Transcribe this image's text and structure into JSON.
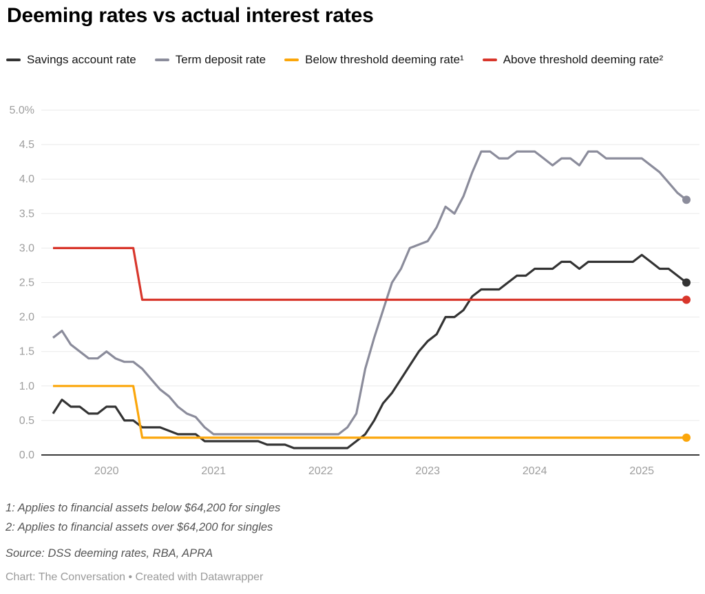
{
  "title": "Deeming rates vs actual interest rates",
  "legend": {
    "items": [
      {
        "label": "Savings account rate",
        "color": "#333333"
      },
      {
        "label": "Term deposit rate",
        "color": "#8b8c9b"
      },
      {
        "label": "Below threshold deeming rate¹",
        "color": "#fba60a"
      },
      {
        "label": "Above threshold deeming rate²",
        "color": "#d8362b"
      }
    ]
  },
  "chart_data": {
    "type": "line",
    "x_start": "2019-07",
    "x_end": "2025-06",
    "interval": "monthly",
    "ylim": [
      0,
      5
    ],
    "grid": "horizontal",
    "y_ticks": [
      {
        "v": 0,
        "label": "0.0"
      },
      {
        "v": 0.5,
        "label": "0.5"
      },
      {
        "v": 1,
        "label": "1.0"
      },
      {
        "v": 1.5,
        "label": "1.5"
      },
      {
        "v": 2,
        "label": "2.0"
      },
      {
        "v": 2.5,
        "label": "2.5"
      },
      {
        "v": 3,
        "label": "3.0"
      },
      {
        "v": 3.5,
        "label": "3.5"
      },
      {
        "v": 4,
        "label": "4.0"
      },
      {
        "v": 4.5,
        "label": "4.5"
      },
      {
        "v": 5,
        "label": "5.0%"
      }
    ],
    "x_ticks": [
      {
        "label": "2020",
        "month_index": 6
      },
      {
        "label": "2021",
        "month_index": 18
      },
      {
        "label": "2022",
        "month_index": 30
      },
      {
        "label": "2023",
        "month_index": 42
      },
      {
        "label": "2024",
        "month_index": 54
      },
      {
        "label": "2025",
        "month_index": 66
      }
    ],
    "series": [
      {
        "name": "Savings account rate",
        "color": "#333333",
        "end_dot": true,
        "values": [
          0.6,
          0.8,
          0.7,
          0.7,
          0.6,
          0.6,
          0.7,
          0.7,
          0.5,
          0.5,
          0.4,
          0.4,
          0.4,
          0.35,
          0.3,
          0.3,
          0.3,
          0.2,
          0.2,
          0.2,
          0.2,
          0.2,
          0.2,
          0.2,
          0.15,
          0.15,
          0.15,
          0.1,
          0.1,
          0.1,
          0.1,
          0.1,
          0.1,
          0.1,
          0.2,
          0.3,
          0.5,
          0.75,
          0.9,
          1.1,
          1.3,
          1.5,
          1.65,
          1.75,
          2.0,
          2.0,
          2.1,
          2.3,
          2.4,
          2.4,
          2.4,
          2.5,
          2.6,
          2.6,
          2.7,
          2.7,
          2.7,
          2.8,
          2.8,
          2.7,
          2.8,
          2.8,
          2.8,
          2.8,
          2.8,
          2.8,
          2.9,
          2.8,
          2.7,
          2.7,
          2.6,
          2.5
        ]
      },
      {
        "name": "Term deposit rate",
        "color": "#8b8c9b",
        "end_dot": true,
        "values": [
          1.7,
          1.8,
          1.6,
          1.5,
          1.4,
          1.4,
          1.5,
          1.4,
          1.35,
          1.35,
          1.25,
          1.1,
          0.95,
          0.85,
          0.7,
          0.6,
          0.55,
          0.4,
          0.3,
          0.3,
          0.3,
          0.3,
          0.3,
          0.3,
          0.3,
          0.3,
          0.3,
          0.3,
          0.3,
          0.3,
          0.3,
          0.3,
          0.3,
          0.4,
          0.6,
          1.25,
          1.7,
          2.1,
          2.5,
          2.7,
          3.0,
          3.05,
          3.1,
          3.3,
          3.6,
          3.5,
          3.75,
          4.1,
          4.4,
          4.4,
          4.3,
          4.3,
          4.4,
          4.4,
          4.4,
          4.3,
          4.2,
          4.3,
          4.3,
          4.2,
          4.4,
          4.4,
          4.3,
          4.3,
          4.3,
          4.3,
          4.3,
          4.2,
          4.1,
          3.95,
          3.8,
          3.7
        ]
      },
      {
        "name": "Below threshold deeming rate¹",
        "color": "#fba60a",
        "end_dot": true,
        "values": [
          1,
          1,
          1,
          1,
          1,
          1,
          1,
          1,
          1,
          1,
          0.25,
          0.25,
          0.25,
          0.25,
          0.25,
          0.25,
          0.25,
          0.25,
          0.25,
          0.25,
          0.25,
          0.25,
          0.25,
          0.25,
          0.25,
          0.25,
          0.25,
          0.25,
          0.25,
          0.25,
          0.25,
          0.25,
          0.25,
          0.25,
          0.25,
          0.25,
          0.25,
          0.25,
          0.25,
          0.25,
          0.25,
          0.25,
          0.25,
          0.25,
          0.25,
          0.25,
          0.25,
          0.25,
          0.25,
          0.25,
          0.25,
          0.25,
          0.25,
          0.25,
          0.25,
          0.25,
          0.25,
          0.25,
          0.25,
          0.25,
          0.25,
          0.25,
          0.25,
          0.25,
          0.25,
          0.25,
          0.25,
          0.25,
          0.25,
          0.25,
          0.25,
          0.25
        ]
      },
      {
        "name": "Above threshold deeming rate²",
        "color": "#d8362b",
        "end_dot": true,
        "values": [
          3,
          3,
          3,
          3,
          3,
          3,
          3,
          3,
          3,
          3,
          2.25,
          2.25,
          2.25,
          2.25,
          2.25,
          2.25,
          2.25,
          2.25,
          2.25,
          2.25,
          2.25,
          2.25,
          2.25,
          2.25,
          2.25,
          2.25,
          2.25,
          2.25,
          2.25,
          2.25,
          2.25,
          2.25,
          2.25,
          2.25,
          2.25,
          2.25,
          2.25,
          2.25,
          2.25,
          2.25,
          2.25,
          2.25,
          2.25,
          2.25,
          2.25,
          2.25,
          2.25,
          2.25,
          2.25,
          2.25,
          2.25,
          2.25,
          2.25,
          2.25,
          2.25,
          2.25,
          2.25,
          2.25,
          2.25,
          2.25,
          2.25,
          2.25,
          2.25,
          2.25,
          2.25,
          2.25,
          2.25,
          2.25,
          2.25,
          2.25,
          2.25,
          2.25
        ]
      }
    ]
  },
  "footnotes": {
    "line1": "1: Applies to financial assets below $64,200 for singles",
    "line2": "2: Applies to financial assets over $64,200 for singles"
  },
  "source": "Source: DSS deeming rates, RBA, APRA",
  "credit": "Chart: The Conversation • Created with Datawrapper"
}
